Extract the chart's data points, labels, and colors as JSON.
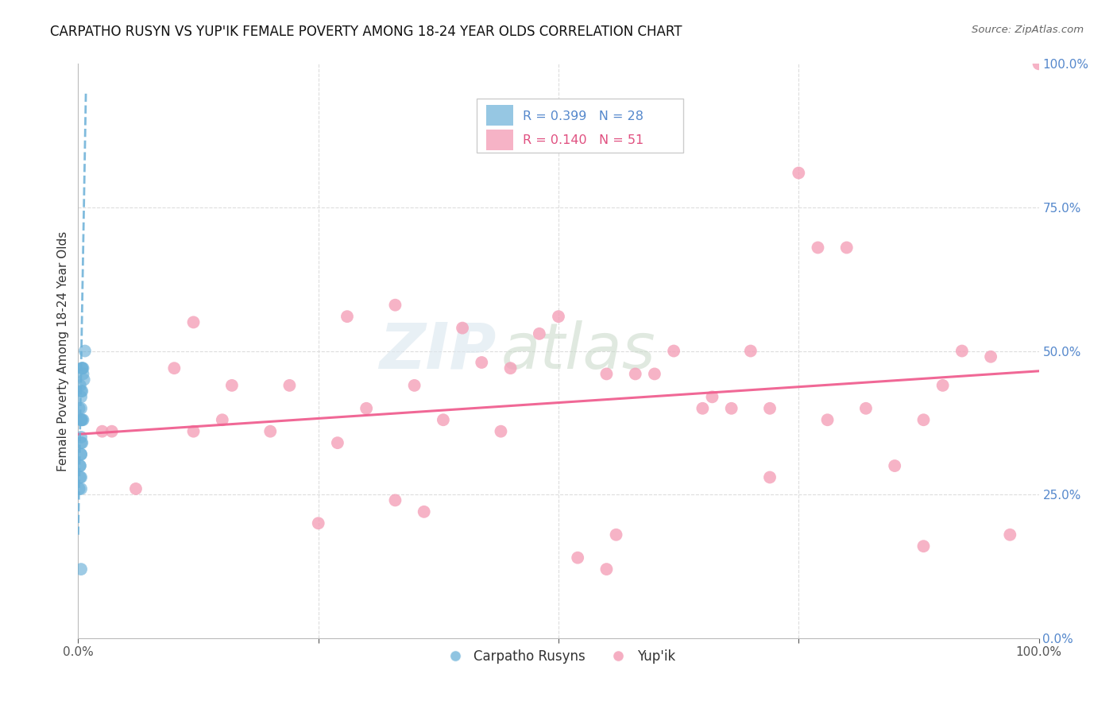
{
  "title": "CARPATHO RUSYN VS YUP'IK FEMALE POVERTY AMONG 18-24 YEAR OLDS CORRELATION CHART",
  "source": "Source: ZipAtlas.com",
  "ylabel": "Female Poverty Among 18-24 Year Olds",
  "xlim": [
    0,
    1.0
  ],
  "ylim": [
    0,
    1.0
  ],
  "xticks": [
    0.0,
    0.25,
    0.5,
    0.75,
    1.0
  ],
  "xticklabels": [
    "0.0%",
    "",
    "",
    "",
    "100.0%"
  ],
  "yticks": [
    0.0,
    0.25,
    0.5,
    0.75,
    1.0
  ],
  "yticklabels_right": [
    "0.0%",
    "25.0%",
    "50.0%",
    "75.0%",
    "100.0%"
  ],
  "watermark_zip": "ZIP",
  "watermark_atlas": "atlas",
  "legend_r1": "R = 0.399",
  "legend_n1": "N = 28",
  "legend_r2": "R = 0.140",
  "legend_n2": "N = 51",
  "blue_color": "#6ab0d8",
  "pink_color": "#f4a0b8",
  "trendline_blue_color": "#6ab0d8",
  "trendline_pink_color": "#f06090",
  "background_color": "#ffffff",
  "grid_color": "#dddddd",
  "right_axis_color": "#5588cc",
  "carpatho_x": [
    0.004,
    0.007,
    0.003,
    0.002,
    0.005,
    0.003,
    0.003,
    0.001,
    0.003,
    0.004,
    0.003,
    0.006,
    0.003,
    0.003,
    0.002,
    0.003,
    0.003,
    0.004,
    0.005,
    0.004,
    0.002,
    0.002,
    0.001,
    0.004,
    0.003,
    0.003,
    0.005,
    0.003
  ],
  "carpatho_y": [
    0.47,
    0.5,
    0.43,
    0.44,
    0.47,
    0.42,
    0.38,
    0.4,
    0.38,
    0.47,
    0.4,
    0.45,
    0.34,
    0.32,
    0.3,
    0.35,
    0.28,
    0.43,
    0.38,
    0.34,
    0.28,
    0.3,
    0.26,
    0.38,
    0.32,
    0.26,
    0.46,
    0.12
  ],
  "yupik_x": [
    0.025,
    0.06,
    0.1,
    0.12,
    0.16,
    0.2,
    0.25,
    0.3,
    0.35,
    0.4,
    0.45,
    0.5,
    0.55,
    0.6,
    0.65,
    0.7,
    0.75,
    0.8,
    0.85,
    0.9,
    0.95,
    1.0,
    0.28,
    0.33,
    0.38,
    0.42,
    0.48,
    0.52,
    0.58,
    0.62,
    0.68,
    0.72,
    0.78,
    0.82,
    0.88,
    0.92,
    0.97,
    0.15,
    0.22,
    0.33,
    0.44,
    0.55,
    0.66,
    0.77,
    0.88,
    0.12,
    0.27,
    0.36,
    0.56,
    0.72,
    0.035
  ],
  "yupik_y": [
    0.36,
    0.26,
    0.47,
    0.36,
    0.44,
    0.36,
    0.2,
    0.4,
    0.44,
    0.54,
    0.47,
    0.56,
    0.46,
    0.46,
    0.4,
    0.5,
    0.81,
    0.68,
    0.3,
    0.44,
    0.49,
    1.0,
    0.56,
    0.58,
    0.38,
    0.48,
    0.53,
    0.14,
    0.46,
    0.5,
    0.4,
    0.4,
    0.38,
    0.4,
    0.38,
    0.5,
    0.18,
    0.38,
    0.44,
    0.24,
    0.36,
    0.12,
    0.42,
    0.68,
    0.16,
    0.55,
    0.34,
    0.22,
    0.18,
    0.28,
    0.36
  ],
  "pink_trendline_x": [
    0.0,
    1.0
  ],
  "pink_trendline_y": [
    0.355,
    0.465
  ],
  "blue_trendline_x_start": 0.0,
  "blue_trendline_x_end": 0.008,
  "blue_trendline_y_start": 0.18,
  "blue_trendline_y_end": 0.95
}
